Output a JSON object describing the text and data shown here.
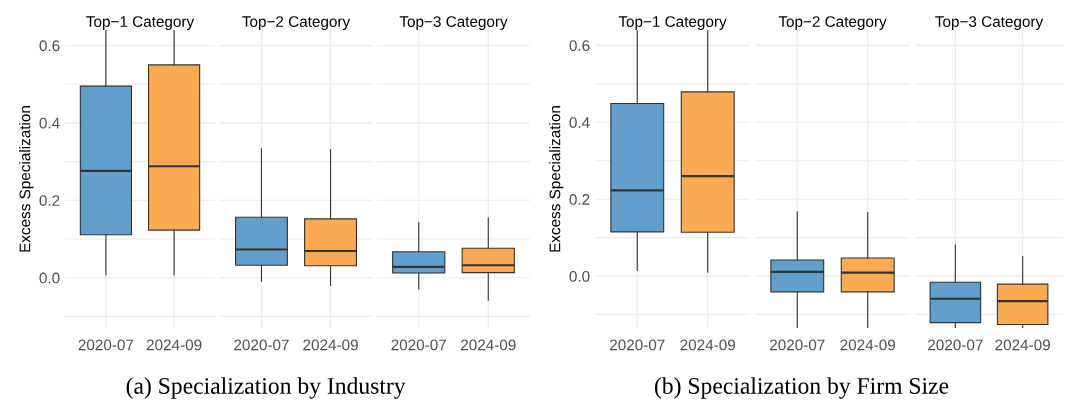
{
  "chart_data": [
    {
      "type": "box",
      "title": "Top−1 Category",
      "ylabel": "Excess Specialization",
      "categories": [
        "2020-07",
        "2024-09"
      ],
      "colors": [
        "#629fcb",
        "#fbab52"
      ],
      "ylim": [
        -0.13,
        0.64
      ],
      "yticks": [
        {
          "value": -0.1,
          "label": null
        },
        {
          "value": 0,
          "label": "0.0"
        },
        {
          "value": 0.1,
          "label": null
        },
        0.2,
        {
          "value": 0.3,
          "label": null
        },
        0.4,
        {
          "value": 0.5,
          "label": null
        },
        0.6
      ],
      "grid": true,
      "boxes": [
        {
          "low": 0.007,
          "q1": 0.111,
          "median": 0.276,
          "q3": 0.495,
          "high": 0.64
        },
        {
          "low": 0.007,
          "q1": 0.123,
          "median": 0.288,
          "q3": 0.55,
          "high": 0.64
        }
      ]
    },
    {
      "type": "box",
      "title": "Top−2 Category",
      "categories": [
        "2020-07",
        "2024-09"
      ],
      "colors": [
        "#629fcb",
        "#fbab52"
      ],
      "ylim": [
        -0.13,
        0.64
      ],
      "yticks": [
        {
          "value": -0.1,
          "label": null
        },
        0.0,
        {
          "value": 0.1,
          "label": null
        },
        0.2,
        {
          "value": 0.3,
          "label": null
        },
        0.4,
        {
          "value": 0.5,
          "label": null
        },
        0.6
      ],
      "grid": true,
      "tick_labels": "x",
      "annotations": [
        "(a) Specialization by Industry"
      ],
      "boxes": [
        {
          "low": -0.009,
          "q1": 0.032,
          "median": 0.073,
          "q3": 0.156,
          "high": 0.333
        },
        {
          "low": -0.02,
          "q1": 0.031,
          "median": 0.069,
          "q3": 0.152,
          "high": 0.331
        }
      ]
    },
    {
      "type": "box",
      "title": "Top−3 Category",
      "categories": [
        "2020-07",
        "2024-09"
      ],
      "colors": [
        "#629fcb",
        "#fbab52"
      ],
      "ylim": [
        -0.13,
        0.64
      ],
      "yticks": [
        {
          "value": -0.1,
          "label": null
        },
        0.0,
        {
          "value": 0.1,
          "label": null
        },
        0.2,
        {
          "value": 0.3,
          "label": null
        },
        0.4,
        {
          "value": 0.5,
          "label": null
        },
        0.6
      ],
      "grid": true,
      "tick_labels": "x",
      "boxes": [
        {
          "low": -0.029,
          "q1": 0.012,
          "median": 0.028,
          "q3": 0.067,
          "high": 0.142
        },
        {
          "low": -0.058,
          "q1": 0.013,
          "median": 0.032,
          "q3": 0.076,
          "high": 0.154
        }
      ]
    },
    {
      "type": "box",
      "title": "Top−1 Category",
      "ylabel": "Excess Specialization",
      "categories": [
        "2020-07",
        "2024-09"
      ],
      "colors": [
        "#629fcb",
        "#fbab52"
      ],
      "ylim": [
        -0.135,
        0.64
      ],
      "yticks": [
        {
          "value": -0.1,
          "label": null
        },
        {
          "value": 0,
          "label": "0.0"
        },
        {
          "value": 0.1,
          "label": null
        },
        0.2,
        {
          "value": 0.3,
          "label": null
        },
        0.4,
        {
          "value": 0.5,
          "label": null
        },
        0.6
      ],
      "grid": true,
      "boxes": [
        {
          "low": 0.015,
          "q1": 0.115,
          "median": 0.223,
          "q3": 0.449,
          "high": 0.64
        },
        {
          "low": 0.01,
          "q1": 0.114,
          "median": 0.26,
          "q3": 0.479,
          "high": 0.64
        }
      ]
    },
    {
      "type": "box",
      "title": "Top−2 Category",
      "categories": [
        "2020-07",
        "2024-09"
      ],
      "colors": [
        "#629fcb",
        "#fbab52"
      ],
      "ylim": [
        -0.135,
        0.64
      ],
      "yticks": [
        {
          "value": -0.1,
          "label": null
        },
        0.0,
        {
          "value": 0.1,
          "label": null
        },
        0.2,
        {
          "value": 0.3,
          "label": null
        },
        0.4,
        {
          "value": 0.5,
          "label": null
        },
        0.6
      ],
      "grid": true,
      "tick_labels": "x",
      "annotations": [
        "(b) Specialization by Firm Size"
      ],
      "boxes": [
        {
          "low": -0.135,
          "q1": -0.041,
          "median": 0.011,
          "q3": 0.042,
          "high": 0.167
        },
        {
          "low": -0.135,
          "q1": -0.041,
          "median": 0.009,
          "q3": 0.047,
          "high": 0.165
        }
      ]
    },
    {
      "type": "box",
      "title": "Top−3 Category",
      "categories": [
        "2020-07",
        "2024-09"
      ],
      "colors": [
        "#629fcb",
        "#fbab52"
      ],
      "ylim": [
        -0.135,
        0.64
      ],
      "yticks": [
        {
          "value": -0.1,
          "label": null
        },
        0.0,
        {
          "value": 0.1,
          "label": null
        },
        0.2,
        {
          "value": 0.3,
          "label": null
        },
        0.4,
        {
          "value": 0.5,
          "label": null
        },
        0.6
      ],
      "grid": true,
      "tick_labels": "x",
      "boxes": [
        {
          "low": -0.135,
          "q1": -0.121,
          "median": -0.059,
          "q3": -0.016,
          "high": 0.081
        },
        {
          "low": -0.135,
          "q1": -0.126,
          "median": -0.065,
          "q3": -0.021,
          "high": 0.051
        }
      ]
    }
  ]
}
